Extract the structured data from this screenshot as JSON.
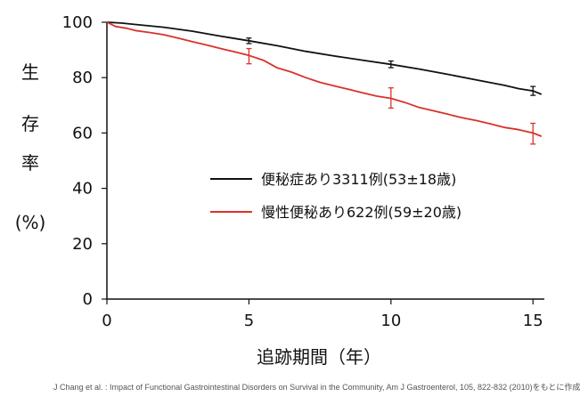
{
  "chart_data": {
    "type": "line",
    "xlabel": "追跡期間（年）",
    "ylabel_chars": [
      "生",
      "存",
      "率"
    ],
    "ylabel_unit": "(%)",
    "xlim": [
      0,
      15.4
    ],
    "ylim": [
      0,
      100
    ],
    "x_ticks": [
      0,
      5,
      10,
      15
    ],
    "y_ticks": [
      0,
      20,
      40,
      60,
      80,
      100
    ],
    "grid": false,
    "legend_position": "center-right",
    "series": [
      {
        "name": "便秘症あり3311例(53±18歳)",
        "color": "#111111",
        "points": [
          [
            0,
            100
          ],
          [
            0.5,
            99.7
          ],
          [
            1,
            99.2
          ],
          [
            2,
            98.2
          ],
          [
            3,
            96.8
          ],
          [
            4,
            95.0
          ],
          [
            5,
            93.3
          ],
          [
            6,
            91.5
          ],
          [
            7,
            89.5
          ],
          [
            8,
            87.8
          ],
          [
            9,
            86.3
          ],
          [
            10,
            84.8
          ],
          [
            11,
            83.1
          ],
          [
            12,
            81.2
          ],
          [
            13,
            79.2
          ],
          [
            14,
            77.2
          ],
          [
            14.5,
            76.0
          ],
          [
            15,
            75.2
          ],
          [
            15.3,
            74.0
          ]
        ],
        "error_bars": [
          {
            "x": 5,
            "low": 92.3,
            "high": 94.3
          },
          {
            "x": 10,
            "low": 83.6,
            "high": 86.0
          },
          {
            "x": 15,
            "low": 73.6,
            "high": 76.8
          }
        ]
      },
      {
        "name": "慢性便秘あり622例(59±20歳)",
        "color": "#d9322b",
        "points": [
          [
            0,
            100
          ],
          [
            0.3,
            98.5
          ],
          [
            0.7,
            97.8
          ],
          [
            1,
            97.0
          ],
          [
            1.5,
            96.3
          ],
          [
            2,
            95.5
          ],
          [
            2.5,
            94.3
          ],
          [
            3,
            93.0
          ],
          [
            3.5,
            91.8
          ],
          [
            4,
            90.5
          ],
          [
            4.5,
            89.3
          ],
          [
            5,
            88.0
          ],
          [
            5.5,
            86.3
          ],
          [
            6,
            83.5
          ],
          [
            6.5,
            82.0
          ],
          [
            7,
            80.0
          ],
          [
            7.5,
            78.3
          ],
          [
            8,
            77.0
          ],
          [
            8.5,
            75.8
          ],
          [
            9,
            74.5
          ],
          [
            9.5,
            73.3
          ],
          [
            10,
            72.5
          ],
          [
            10.5,
            71.0
          ],
          [
            11,
            69.2
          ],
          [
            11.5,
            68.0
          ],
          [
            12,
            66.8
          ],
          [
            12.5,
            65.5
          ],
          [
            13,
            64.5
          ],
          [
            13.5,
            63.3
          ],
          [
            14,
            62.0
          ],
          [
            14.5,
            61.2
          ],
          [
            15,
            60.0
          ],
          [
            15.3,
            58.8
          ]
        ],
        "error_bars": [
          {
            "x": 5,
            "low": 85.0,
            "high": 90.5
          },
          {
            "x": 10,
            "low": 69.0,
            "high": 76.3
          },
          {
            "x": 15,
            "low": 56.0,
            "high": 63.5
          }
        ]
      }
    ]
  },
  "footnote": "J Chang et al. : Impact of Functional Gastrointestinal Disorders on Survival in the Community, Am J Gastroenterol, 105, 822-832 (2010)をもとに作成"
}
